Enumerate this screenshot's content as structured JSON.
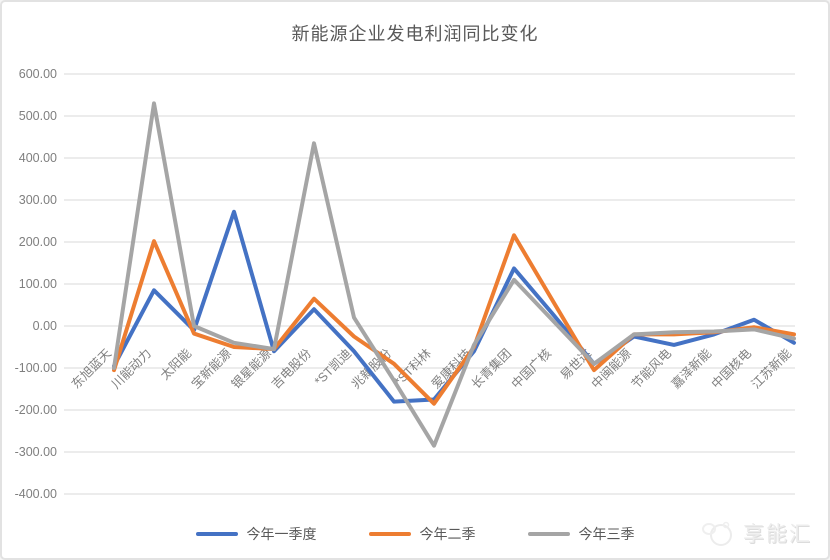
{
  "chart_data": {
    "type": "line",
    "title": "新能源企业发电利润同比变化",
    "categories": [
      "东旭蓝天",
      "川能动力",
      "太阳能",
      "宝新能源",
      "银星能源",
      "吉电股份",
      "*ST凯迪",
      "兆新股份",
      "*ST科林",
      "爱康科技",
      "长青集团",
      "中国广核",
      "易世达",
      "中闽能源",
      "节能风电",
      "嘉泽新能",
      "中国核电",
      "江苏新能"
    ],
    "series": [
      {
        "name": "今年一季度",
        "color": "#4472C4",
        "values": [
          -95,
          85,
          -10,
          272,
          -60,
          40,
          -60,
          -180,
          -175,
          -60,
          137,
          25,
          -90,
          -25,
          -45,
          -20,
          15,
          -40
        ]
      },
      {
        "name": "今年二季",
        "color": "#ED7D31",
        "values": [
          -105,
          202,
          -18,
          -50,
          -55,
          65,
          -25,
          -90,
          -185,
          -50,
          216,
          55,
          -105,
          -20,
          -20,
          -15,
          -3,
          -20
        ]
      },
      {
        "name": "今年三季",
        "color": "#A5A5A5",
        "values": [
          -100,
          530,
          0,
          -40,
          -55,
          435,
          20,
          -130,
          -285,
          -45,
          110,
          10,
          -90,
          -20,
          -15,
          -13,
          -8,
          -30
        ]
      }
    ],
    "xlabel": "",
    "ylabel": "",
    "ylim": [
      -400,
      600
    ],
    "ytick_step": 100,
    "ytick_format": "two-decimals",
    "grid": "horizontal",
    "legend_position": "bottom"
  },
  "colors": {
    "gridline": "#d9d9d9",
    "axis_text": "#7f7f7f",
    "title_text": "#595959"
  },
  "watermark": {
    "text": "享能汇"
  }
}
